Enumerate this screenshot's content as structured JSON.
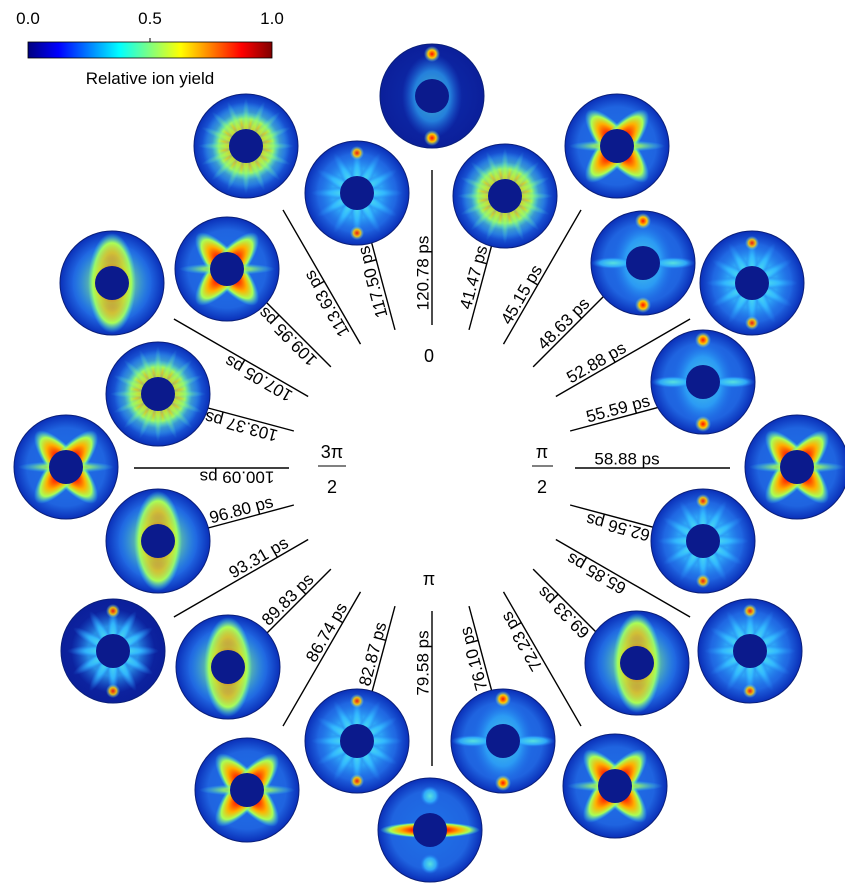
{
  "colorbar": {
    "label": "Relative ion yield",
    "ticks": [
      "0.0",
      "0.5",
      "1.0"
    ],
    "colormap": [
      "#00007f",
      "#0000ff",
      "#007fff",
      "#00ffff",
      "#7fff7f",
      "#ffff00",
      "#ff7f00",
      "#ff0000",
      "#7f0000"
    ]
  },
  "phase_labels": {
    "zero": "0",
    "pi": "π",
    "half_pi_num": "π",
    "half_pi_den": "2",
    "three_half_pi_num": "3π",
    "three_half_pi_den": "2"
  },
  "delays": [
    "120.78 ps",
    "41.47 ps",
    "45.15 ps",
    "48.63 ps",
    "52.88 ps",
    "55.59 ps",
    "58.88 ps",
    "62.56 ps",
    "65.85 ps",
    "69.33 ps",
    "72.23 ps",
    "76.10 ps",
    "79.58 ps",
    "82.87 ps",
    "86.74 ps",
    "89.83 ps",
    "93.31 ps",
    "96.80 ps",
    "100.09 ps",
    "103.37 ps",
    "107.05 ps",
    "109.95 ps",
    "113.63 ps",
    "117.50 ps"
  ],
  "images": [
    {
      "delay": "120.78 ps",
      "pattern": "tips"
    },
    {
      "delay": "41.47 ps",
      "pattern": "ring"
    },
    {
      "delay": "45.15 ps",
      "pattern": "x"
    },
    {
      "delay": "48.63 ps",
      "pattern": "tips"
    },
    {
      "delay": "52.88 ps",
      "pattern": "spokes"
    },
    {
      "delay": "55.59 ps",
      "pattern": "tips"
    },
    {
      "delay": "58.88 ps",
      "pattern": "x"
    },
    {
      "delay": "62.56 ps",
      "pattern": "spokes"
    },
    {
      "delay": "65.85 ps",
      "pattern": "spokes"
    },
    {
      "delay": "69.33 ps",
      "pattern": "vbar"
    },
    {
      "delay": "72.23 ps",
      "pattern": "x"
    },
    {
      "delay": "76.10 ps",
      "pattern": "tips"
    },
    {
      "delay": "79.58 ps",
      "pattern": "hbar"
    },
    {
      "delay": "82.87 ps",
      "pattern": "spokes"
    },
    {
      "delay": "86.74 ps",
      "pattern": "x"
    },
    {
      "delay": "89.83 ps",
      "pattern": "vbar"
    },
    {
      "delay": "93.31 ps",
      "pattern": "spokes"
    },
    {
      "delay": "96.80 ps",
      "pattern": "vbar"
    },
    {
      "delay": "100.09 ps",
      "pattern": "x"
    },
    {
      "delay": "103.37 ps",
      "pattern": "ring"
    },
    {
      "delay": "107.05 ps",
      "pattern": "vbar"
    },
    {
      "delay": "109.95 ps",
      "pattern": "x"
    },
    {
      "delay": "113.63 ps",
      "pattern": "ring"
    },
    {
      "delay": "117.50 ps",
      "pattern": "spokes"
    }
  ]
}
